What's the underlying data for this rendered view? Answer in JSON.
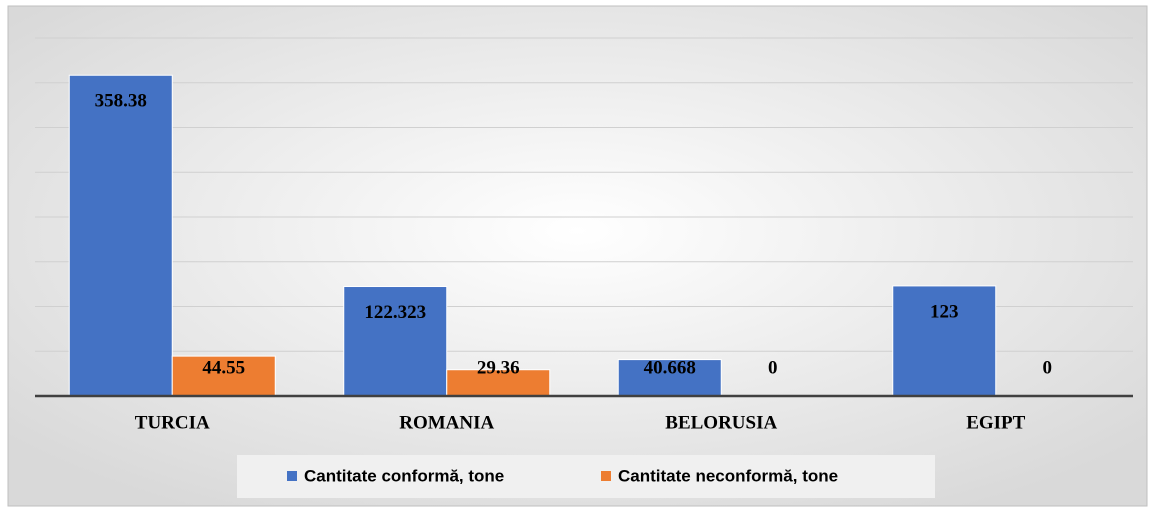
{
  "chart_data": {
    "type": "bar",
    "categories": [
      "TURCIA",
      "ROMANIA",
      "BELORUSIA",
      "EGIPT"
    ],
    "series": [
      {
        "name": "Cantitate conformă, tone",
        "color": "#4472c4",
        "values": [
          358.38,
          122.323,
          40.668,
          123
        ]
      },
      {
        "name": "Cantitate neconformă, tone",
        "color": "#ed7d31",
        "values": [
          44.55,
          29.36,
          0,
          0
        ]
      }
    ],
    "ylim": [
      0,
      400
    ],
    "yticks": [
      0,
      50,
      100,
      150,
      200,
      250,
      300,
      350,
      400
    ],
    "grid": true,
    "legend": "bottom"
  }
}
